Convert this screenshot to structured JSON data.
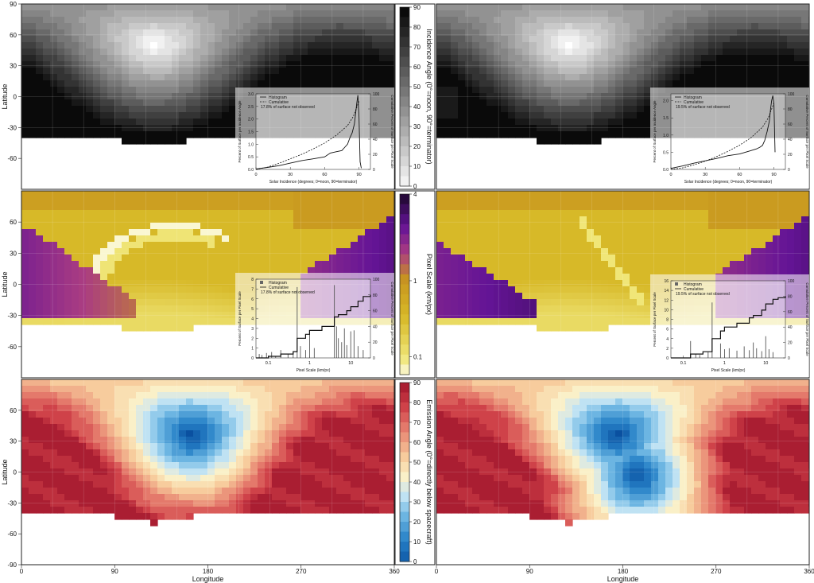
{
  "chart_data": [
    {
      "type": "heatmap",
      "panel": "incidence-map-left",
      "xlim": [
        0,
        360
      ],
      "ylim": [
        -90,
        90
      ],
      "colorbar": "Incidence Angle (0°=noon, 90°=terminator)",
      "colorbar_ticks": [
        "0",
        "10",
        "20",
        "30",
        "40",
        "50",
        "60",
        "70",
        "80",
        "90"
      ],
      "subsolar_point": {
        "lon": 130,
        "lat": 50
      },
      "coverage_lat_min": -40,
      "inset": {
        "type": "line",
        "xlabel": "Solar Incidence (degrees; 0=noon, 90=terminator)",
        "ylabel_left": "Percent of Surface per Incidence Angle",
        "ylabel_right": "Cumulative Percent of Surface per Pixel Scale",
        "legend": [
          "Histogram",
          "Cumulative"
        ],
        "note": "17.8% of surface not observed",
        "x_ticks": [
          "0",
          "30",
          "60",
          "90"
        ],
        "y_left_ticks": [
          "0.0",
          "0.5",
          "1.0",
          "1.5",
          "2.0",
          "2.5",
          "3.0"
        ],
        "y_right_ticks": [
          "0",
          "20",
          "40",
          "60",
          "80",
          "100"
        ],
        "xlim": [
          0,
          100
        ],
        "ylim_left": [
          0,
          3.0
        ],
        "ylim_right": [
          0,
          100
        ],
        "series": [
          {
            "name": "Histogram",
            "x": [
              0,
              10,
              20,
              30,
              40,
              50,
              60,
              65,
              70,
              75,
              78,
              80,
              82,
              84,
              86,
              87,
              88,
              89,
              90,
              91,
              92
            ],
            "y": [
              0.02,
              0.08,
              0.15,
              0.25,
              0.35,
              0.42,
              0.5,
              0.65,
              0.7,
              0.75,
              0.9,
              1.0,
              1.25,
              1.45,
              1.8,
              2.2,
              2.6,
              2.95,
              2.1,
              0.3,
              0.05
            ]
          },
          {
            "name": "Cumulative",
            "x": [
              0,
              10,
              20,
              30,
              40,
              50,
              60,
              70,
              80,
              85,
              88,
              90
            ],
            "y": [
              0,
              3,
              8,
              14,
              20,
              27,
              35,
              45,
              58,
              70,
              82,
              90
            ]
          }
        ]
      }
    },
    {
      "type": "heatmap",
      "panel": "incidence-map-right",
      "xlim": [
        0,
        360
      ],
      "ylim": [
        -90,
        90
      ],
      "subsolar_point": {
        "lon": 130,
        "lat": 50
      },
      "coverage_lat_min": -40,
      "inset": {
        "type": "line",
        "xlabel": "Solar Incidence (degrees; 0=noon, 90=terminator)",
        "ylabel_left": "Percent of Surface per Incidence Angle",
        "ylabel_right": "Cumulative Percent of Surface per Pixel Scale",
        "legend": [
          "Histogram",
          "Cumulative"
        ],
        "note": "19.5% of surface not observed",
        "x_ticks": [
          "0",
          "30",
          "60",
          "90"
        ],
        "y_left_ticks": [
          "0.0",
          "0.5",
          "1.0",
          "1.5",
          "2.0"
        ],
        "y_right_ticks": [
          "0",
          "20",
          "40",
          "60",
          "80",
          "100"
        ],
        "xlim": [
          0,
          100
        ],
        "ylim_left": [
          0,
          2.2
        ],
        "ylim_right": [
          0,
          100
        ],
        "series": [
          {
            "name": "Histogram",
            "x": [
              0,
              10,
              20,
              30,
              40,
              50,
              60,
              65,
              70,
              75,
              78,
              80,
              82,
              84,
              86,
              87,
              88,
              89,
              90,
              91
            ],
            "y": [
              0.03,
              0.1,
              0.18,
              0.25,
              0.32,
              0.4,
              0.45,
              0.5,
              0.55,
              0.6,
              0.65,
              0.7,
              0.85,
              1.1,
              1.4,
              1.75,
              2.0,
              2.15,
              1.9,
              0.5
            ]
          },
          {
            "name": "Cumulative",
            "x": [
              0,
              10,
              20,
              30,
              40,
              50,
              60,
              70,
              80,
              85,
              88,
              90
            ],
            "y": [
              0,
              2,
              6,
              11,
              17,
              24,
              32,
              42,
              56,
              68,
              80,
              88
            ]
          }
        ]
      }
    },
    {
      "type": "heatmap",
      "panel": "pixel-scale-map-left",
      "xlim": [
        0,
        360
      ],
      "ylim": [
        -90,
        90
      ],
      "colorbar": "Pixel Scale (km/px)",
      "colorbar_ticks": [
        "0.1",
        "1",
        "4"
      ],
      "coverage_lat_min": -40,
      "inset": {
        "type": "bar",
        "xscale": "log",
        "xlabel": "Pixel Scale (km/px)",
        "ylabel_left": "Percent of Surface per Pixel Scale",
        "ylabel_right": "Cumulative Percent of Surface per Pixel Scale",
        "legend": [
          "Histogram",
          "Cumulative"
        ],
        "note": "17.8% of surface not observed",
        "x_ticks": [
          "0.1",
          "1",
          "10"
        ],
        "y_left_ticks": [
          "0",
          "1",
          "2",
          "3",
          "4",
          "5",
          "6",
          "7",
          "8"
        ],
        "y_right_ticks": [
          "0",
          "20",
          "40",
          "60",
          "80",
          "100"
        ],
        "xlim": [
          0.05,
          30
        ],
        "ylim_left": [
          0,
          8
        ],
        "ylim_right": [
          0,
          100
        ],
        "series": [
          {
            "name": "Histogram",
            "x": [
              0.06,
              0.07,
              0.09,
              0.12,
              0.15,
              0.2,
              0.3,
              0.4,
              0.5,
              0.6,
              0.8,
              1,
              1.3,
              4,
              4.5,
              5,
              6,
              7,
              8,
              10,
              12,
              15,
              20
            ],
            "y": [
              0.4,
              0.3,
              0.5,
              0.6,
              0.2,
              0.8,
              0.4,
              0.6,
              7.2,
              1.2,
              0.8,
              2.5,
              1.0,
              7.4,
              3.2,
              2.0,
              1.6,
              3.0,
              1.3,
              2.7,
              2.8,
              1.2,
              0.8
            ]
          },
          {
            "name": "Cumulative",
            "x": [
              0.05,
              0.1,
              0.2,
              0.4,
              0.5,
              0.8,
              1,
              2,
              4,
              5,
              8,
              10,
              15,
              20,
              30
            ],
            "y": [
              0,
              2,
              5,
              8,
              25,
              30,
              35,
              40,
              52,
              55,
              60,
              65,
              72,
              78,
              80
            ]
          }
        ]
      }
    },
    {
      "type": "heatmap",
      "panel": "pixel-scale-map-right",
      "xlim": [
        0,
        360
      ],
      "ylim": [
        -90,
        90
      ],
      "coverage_lat_min": -40,
      "inset": {
        "type": "bar",
        "xscale": "log",
        "xlabel": "Pixel Scale (km/px)",
        "ylabel_left": "Percent of Surface per Pixel Scale",
        "ylabel_right": "Cumulative Percent of Surface per Pixel Scale",
        "legend": [
          "Histogram",
          "Cumulative"
        ],
        "note": "19.5% of surface not observed",
        "x_ticks": [
          "0.1",
          "1",
          "10"
        ],
        "y_left_ticks": [
          "0",
          "2",
          "4",
          "6",
          "8",
          "10",
          "12",
          "14",
          "16"
        ],
        "y_right_ticks": [
          "0",
          "20",
          "40",
          "60",
          "80",
          "100"
        ],
        "xlim": [
          0.05,
          30
        ],
        "ylim_left": [
          0,
          16
        ],
        "ylim_right": [
          0,
          100
        ],
        "series": [
          {
            "name": "Histogram",
            "x": [
              0.15,
              0.2,
              0.25,
              0.4,
              0.5,
              0.8,
              1,
              1.3,
              2,
              3,
              4,
              5,
              6,
              8,
              10,
              12,
              15
            ],
            "y": [
              3.5,
              0.8,
              0.6,
              1.2,
              11.5,
              3.0,
              1.8,
              2.0,
              1.5,
              2.4,
              1.6,
              3.2,
              2.0,
              1.4,
              4.5,
              1.8,
              1.2
            ]
          },
          {
            "name": "Cumulative",
            "x": [
              0.05,
              0.15,
              0.3,
              0.5,
              0.8,
              1,
              2,
              4,
              5,
              8,
              10,
              15,
              20,
              30
            ],
            "y": [
              0,
              5,
              8,
              25,
              35,
              40,
              45,
              52,
              55,
              62,
              70,
              76,
              78,
              80
            ]
          }
        ]
      }
    },
    {
      "type": "heatmap",
      "panel": "emission-map-left",
      "xlim": [
        0,
        360
      ],
      "ylim": [
        -90,
        90
      ],
      "colorbar": "Emission Angle (0°=directly below spacecraft)",
      "colorbar_ticks": [
        "0",
        "10",
        "20",
        "30",
        "40",
        "50",
        "60",
        "70",
        "80",
        "90"
      ],
      "min_emission_point": {
        "lon": 165,
        "lat": 35
      },
      "coverage_lat_min": -40
    },
    {
      "type": "heatmap",
      "panel": "emission-map-right",
      "xlim": [
        0,
        360
      ],
      "ylim": [
        -90,
        90
      ],
      "min_emission_points": [
        {
          "lon": 175,
          "lat": 35
        },
        {
          "lon": 195,
          "lat": -5
        }
      ],
      "coverage_lat_min": -40
    }
  ],
  "axes": {
    "ylabel": "Latitude",
    "xlabel": "Longitude",
    "lat_ticks_top": [
      "90",
      "60",
      "30",
      "0",
      "-30",
      "-60"
    ],
    "lat_ticks_mid": [
      "60",
      "30",
      "0",
      "-30",
      "-60"
    ],
    "lat_ticks_bot": [
      "60",
      "30",
      "0",
      "-30",
      "-60",
      "-90"
    ],
    "lon_ticks": [
      "0",
      "90",
      "180",
      "270",
      "360"
    ]
  }
}
